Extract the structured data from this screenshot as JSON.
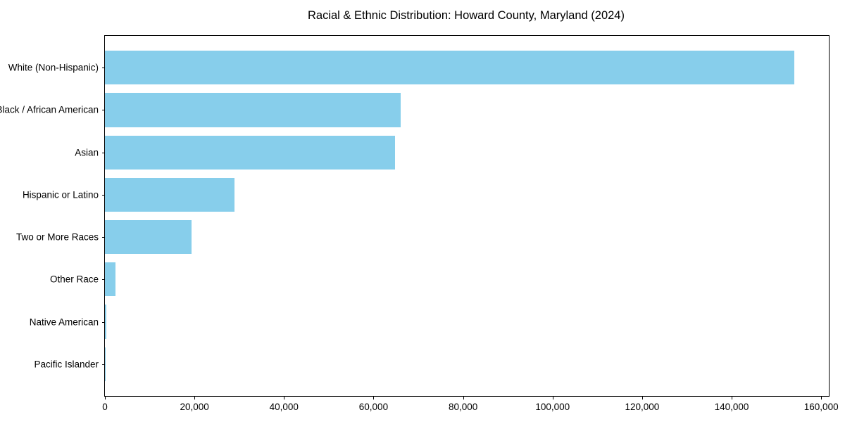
{
  "chart_data": {
    "type": "bar",
    "orientation": "horizontal",
    "title": "Racial & Ethnic Distribution: Howard County, Maryland (2024)",
    "categories": [
      "White (Non-Hispanic)",
      "Black / African American",
      "Asian",
      "Hispanic or Latino",
      "Two or More Races",
      "Other Race",
      "Native American",
      "Pacific Islander"
    ],
    "values": [
      154000,
      66100,
      64800,
      28900,
      19300,
      2300,
      300,
      100
    ],
    "xlabel": "",
    "ylabel": "",
    "xlim": [
      0,
      161700
    ],
    "xticks": [
      0,
      20000,
      40000,
      60000,
      80000,
      100000,
      120000,
      140000,
      160000
    ],
    "xtick_labels": [
      "0",
      "20,000",
      "40,000",
      "60,000",
      "80,000",
      "100,000",
      "120,000",
      "140,000",
      "160,000"
    ],
    "bar_color": "#87CEEB",
    "grid": false,
    "legend_position": "none"
  }
}
